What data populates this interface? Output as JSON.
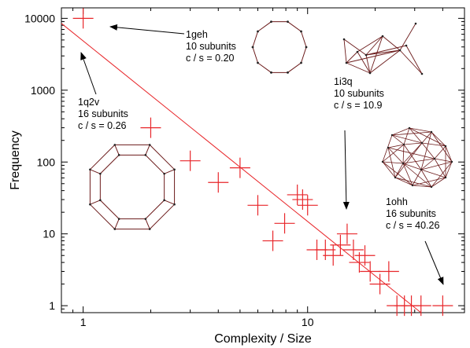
{
  "chart_data": {
    "type": "scatter",
    "xlabel": "Complexity / Size",
    "ylabel": "Frequency",
    "x_scale": "log",
    "y_scale": "log",
    "xlim": [
      0.8,
      50
    ],
    "ylim": [
      0.8,
      14000
    ],
    "x_ticks": [
      {
        "v": 1,
        "label": "1"
      },
      {
        "v": 10,
        "label": "10"
      }
    ],
    "y_ticks": [
      {
        "v": 1,
        "label": "1"
      },
      {
        "v": 10,
        "label": "10"
      },
      {
        "v": 100,
        "label": "100"
      },
      {
        "v": 1000,
        "label": "1000"
      },
      {
        "v": 10000,
        "label": "10000"
      }
    ],
    "colors": {
      "points": "#e8262a",
      "fit": "#e8262a",
      "structure": "#6b1a1a"
    },
    "points": [
      {
        "x": 1.0,
        "y": 10000
      },
      {
        "x": 2.0,
        "y": 300
      },
      {
        "x": 3.0,
        "y": 104
      },
      {
        "x": 4.0,
        "y": 52
      },
      {
        "x": 5.0,
        "y": 83
      },
      {
        "x": 6.0,
        "y": 25
      },
      {
        "x": 7.0,
        "y": 8
      },
      {
        "x": 7.9,
        "y": 14
      },
      {
        "x": 9.0,
        "y": 35
      },
      {
        "x": 9.5,
        "y": 30
      },
      {
        "x": 10.0,
        "y": 25
      },
      {
        "x": 11.0,
        "y": 6
      },
      {
        "x": 12.0,
        "y": 6
      },
      {
        "x": 13.0,
        "y": 5
      },
      {
        "x": 14.0,
        "y": 7
      },
      {
        "x": 15.0,
        "y": 10
      },
      {
        "x": 16.0,
        "y": 6
      },
      {
        "x": 17.0,
        "y": 4
      },
      {
        "x": 18.0,
        "y": 5
      },
      {
        "x": 19.0,
        "y": 3
      },
      {
        "x": 21.0,
        "y": 2
      },
      {
        "x": 23.0,
        "y": 3
      },
      {
        "x": 25.0,
        "y": 1
      },
      {
        "x": 27.0,
        "y": 1
      },
      {
        "x": 29.0,
        "y": 1
      },
      {
        "x": 32.0,
        "y": 1
      },
      {
        "x": 40.0,
        "y": 1
      }
    ],
    "fit_line": [
      {
        "x": 0.8,
        "y": 8500
      },
      {
        "x": 32,
        "y": 0.8
      }
    ],
    "annotations": [
      {
        "id": "1geh",
        "lines": [
          "1geh",
          "10 subunits",
          "c / s = 0.20"
        ]
      },
      {
        "id": "1q2v",
        "lines": [
          "1q2v",
          "16 subunits",
          "c / s = 0.26"
        ]
      },
      {
        "id": "1i3q",
        "lines": [
          "1i3q",
          "10 subunits",
          "c / s = 10.9"
        ]
      },
      {
        "id": "1ohh",
        "lines": [
          "1ohh",
          "16 subunits",
          "c / s = 40.26"
        ]
      }
    ]
  }
}
